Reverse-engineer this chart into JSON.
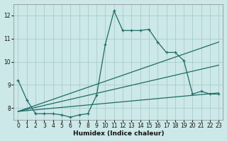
{
  "xlabel": "Humidex (Indice chaleur)",
  "background_color": "#cce8e8",
  "grid_color": "#aacccc",
  "line_color": "#1e6b64",
  "xlim": [
    -0.5,
    23.5
  ],
  "ylim": [
    7.5,
    12.5
  ],
  "yticks": [
    8,
    9,
    10,
    11,
    12
  ],
  "xticks": [
    0,
    1,
    2,
    3,
    4,
    5,
    6,
    7,
    8,
    9,
    10,
    11,
    12,
    13,
    14,
    15,
    16,
    17,
    18,
    19,
    20,
    21,
    22,
    23
  ],
  "line1_x": [
    0,
    1,
    2,
    3,
    4,
    5,
    6,
    7,
    8,
    9,
    10,
    11,
    12,
    13,
    14,
    15,
    16,
    17,
    18,
    19,
    20,
    21,
    22,
    23
  ],
  "line1_y": [
    9.2,
    8.35,
    7.75,
    7.75,
    7.75,
    7.7,
    7.6,
    7.7,
    7.75,
    8.55,
    10.75,
    12.2,
    11.35,
    11.35,
    11.35,
    11.4,
    10.85,
    10.4,
    10.4,
    10.05,
    8.6,
    8.72,
    8.6,
    8.6
  ],
  "line2_x": [
    0,
    23
  ],
  "line2_y": [
    7.85,
    8.65
  ],
  "line3_x": [
    0,
    23
  ],
  "line3_y": [
    7.85,
    9.85
  ],
  "line4_x": [
    0,
    23
  ],
  "line4_y": [
    7.85,
    10.85
  ]
}
